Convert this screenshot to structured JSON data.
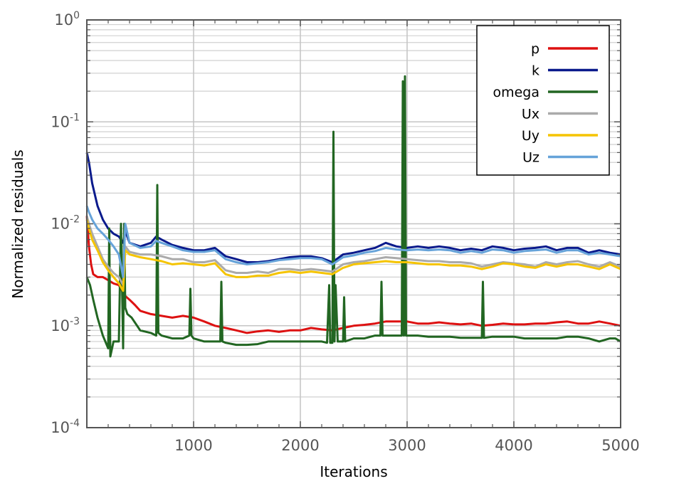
{
  "chart_data": {
    "type": "line",
    "title": "",
    "xlabel": "Iterations",
    "ylabel": "Normalized residuals",
    "xscale": "linear",
    "yscale": "log",
    "xlim": [
      0,
      5000
    ],
    "ylim": [
      0.0001,
      1
    ],
    "x_ticks": [
      1000,
      2000,
      3000,
      4000,
      5000
    ],
    "x_tick_labels": [
      "1000",
      "2000",
      "3000",
      "4000",
      "5000"
    ],
    "y_ticks": [
      {
        "base": "10",
        "exp": "0",
        "value": 1
      },
      {
        "base": "10",
        "exp": "-1",
        "value": 0.1
      },
      {
        "base": "10",
        "exp": "-2",
        "value": 0.01
      },
      {
        "base": "10",
        "exp": "-3",
        "value": 0.001
      },
      {
        "base": "10",
        "exp": "-4",
        "value": 0.0001
      }
    ],
    "grid": true,
    "minor_grid": true,
    "legend_position": "top-right",
    "series": [
      {
        "name": "p",
        "color": "#dd1111",
        "x": [
          0,
          20,
          40,
          60,
          100,
          150,
          200,
          250,
          300,
          350,
          400,
          450,
          500,
          600,
          700,
          800,
          900,
          1000,
          1100,
          1200,
          1300,
          1400,
          1500,
          1600,
          1700,
          1800,
          1900,
          2000,
          2100,
          2200,
          2300,
          2400,
          2500,
          2600,
          2700,
          2800,
          2900,
          3000,
          3100,
          3200,
          3300,
          3400,
          3500,
          3600,
          3700,
          3800,
          3900,
          4000,
          4100,
          4200,
          4300,
          4400,
          4500,
          4600,
          4700,
          4800,
          4900,
          5000
        ],
        "y": [
          0.012,
          0.006,
          0.004,
          0.0032,
          0.003,
          0.003,
          0.0028,
          0.0026,
          0.0025,
          0.002,
          0.0018,
          0.0016,
          0.0014,
          0.0013,
          0.00125,
          0.0012,
          0.00125,
          0.0012,
          0.0011,
          0.001,
          0.00095,
          0.0009,
          0.00085,
          0.00088,
          0.0009,
          0.00087,
          0.0009,
          0.0009,
          0.00095,
          0.00092,
          0.0009,
          0.00095,
          0.001,
          0.00102,
          0.00105,
          0.0011,
          0.0011,
          0.0011,
          0.00105,
          0.00105,
          0.00108,
          0.00105,
          0.00103,
          0.00105,
          0.001,
          0.00102,
          0.00105,
          0.00103,
          0.00103,
          0.00105,
          0.00105,
          0.00108,
          0.0011,
          0.00105,
          0.00105,
          0.0011,
          0.00105,
          0.001
        ]
      },
      {
        "name": "k",
        "color": "#0a1a8c",
        "x": [
          0,
          20,
          50,
          100,
          150,
          200,
          250,
          300,
          340,
          360,
          400,
          500,
          600,
          650,
          700,
          800,
          900,
          1000,
          1100,
          1200,
          1300,
          1400,
          1500,
          1600,
          1700,
          1800,
          1900,
          2000,
          2100,
          2200,
          2300,
          2400,
          2500,
          2600,
          2700,
          2800,
          2900,
          3000,
          3100,
          3200,
          3300,
          3400,
          3500,
          3600,
          3700,
          3800,
          3900,
          4000,
          4100,
          4200,
          4300,
          4400,
          4500,
          4600,
          4700,
          4800,
          4900,
          5000
        ],
        "y": [
          0.05,
          0.04,
          0.025,
          0.015,
          0.011,
          0.009,
          0.008,
          0.0075,
          0.0065,
          0.0085,
          0.0065,
          0.006,
          0.0065,
          0.0075,
          0.007,
          0.0062,
          0.0058,
          0.0055,
          0.0055,
          0.0058,
          0.0048,
          0.0045,
          0.0042,
          0.0042,
          0.0043,
          0.0045,
          0.0047,
          0.0048,
          0.0048,
          0.0046,
          0.0042,
          0.005,
          0.0052,
          0.0055,
          0.0058,
          0.0065,
          0.006,
          0.0058,
          0.006,
          0.0058,
          0.006,
          0.0058,
          0.0055,
          0.0057,
          0.0055,
          0.006,
          0.0058,
          0.0055,
          0.0057,
          0.0058,
          0.006,
          0.0055,
          0.0058,
          0.0058,
          0.0052,
          0.0055,
          0.0052,
          0.005
        ]
      },
      {
        "name": "omega",
        "color": "#226622",
        "x": [
          0,
          30,
          60,
          100,
          150,
          200,
          210,
          220,
          250,
          300,
          320,
          340,
          350,
          360,
          380,
          420,
          500,
          600,
          650,
          660,
          670,
          700,
          800,
          900,
          960,
          970,
          980,
          1000,
          1100,
          1200,
          1250,
          1260,
          1270,
          1300,
          1400,
          1500,
          1600,
          1700,
          1800,
          1900,
          2000,
          2100,
          2200,
          2250,
          2270,
          2280,
          2300,
          2310,
          2320,
          2330,
          2350,
          2400,
          2410,
          2420,
          2500,
          2600,
          2700,
          2750,
          2760,
          2770,
          2800,
          2900,
          2950,
          2960,
          2970,
          2980,
          2990,
          3000,
          3010,
          3100,
          3200,
          3300,
          3400,
          3500,
          3600,
          3700,
          3710,
          3720,
          3800,
          3900,
          4000,
          4100,
          4200,
          4300,
          4400,
          4500,
          4600,
          4700,
          4800,
          4900,
          4950,
          5000
        ],
        "y": [
          0.003,
          0.0025,
          0.0018,
          0.0012,
          0.0008,
          0.0006,
          0.009,
          0.0005,
          0.0007,
          0.0007,
          0.01,
          0.0006,
          0.01,
          0.0015,
          0.0013,
          0.0012,
          0.0009,
          0.00085,
          0.0008,
          0.024,
          0.00085,
          0.0008,
          0.00075,
          0.00075,
          0.0008,
          0.0023,
          0.0008,
          0.00075,
          0.0007,
          0.0007,
          0.0007,
          0.0027,
          0.0007,
          0.00068,
          0.00065,
          0.00065,
          0.00066,
          0.0007,
          0.0007,
          0.0007,
          0.0007,
          0.0007,
          0.0007,
          0.00068,
          0.0025,
          0.00068,
          0.00068,
          0.08,
          0.0007,
          0.0025,
          0.0007,
          0.0007,
          0.0019,
          0.0007,
          0.00075,
          0.00075,
          0.0008,
          0.0008,
          0.0027,
          0.0008,
          0.0008,
          0.0008,
          0.0008,
          0.25,
          0.0008,
          0.28,
          0.0008,
          0.0008,
          0.0008,
          0.0008,
          0.00078,
          0.00078,
          0.00078,
          0.00076,
          0.00076,
          0.00076,
          0.0027,
          0.00076,
          0.00078,
          0.00078,
          0.00078,
          0.00075,
          0.00075,
          0.00075,
          0.00075,
          0.00078,
          0.00078,
          0.00075,
          0.0007,
          0.00075,
          0.00075,
          0.0007
        ]
      },
      {
        "name": "Ux",
        "color": "#aaaaaa",
        "x": [
          0,
          20,
          50,
          100,
          150,
          200,
          250,
          300,
          340,
          360,
          400,
          500,
          600,
          700,
          800,
          900,
          1000,
          1100,
          1200,
          1300,
          1400,
          1500,
          1600,
          1700,
          1800,
          1900,
          2000,
          2100,
          2200,
          2300,
          2400,
          2500,
          2600,
          2700,
          2800,
          2900,
          3000,
          3100,
          3200,
          3300,
          3400,
          3500,
          3600,
          3700,
          3800,
          3900,
          4000,
          4100,
          4200,
          4300,
          4400,
          4500,
          4600,
          4700,
          4800,
          4900,
          5000
        ],
        "y": [
          0.012,
          0.01,
          0.008,
          0.006,
          0.0045,
          0.0038,
          0.0033,
          0.003,
          0.0025,
          0.006,
          0.0053,
          0.005,
          0.005,
          0.0048,
          0.0045,
          0.0045,
          0.0042,
          0.0042,
          0.0044,
          0.0035,
          0.0033,
          0.0033,
          0.0034,
          0.0033,
          0.0036,
          0.0036,
          0.0035,
          0.0036,
          0.0035,
          0.0034,
          0.004,
          0.0042,
          0.0043,
          0.0045,
          0.0047,
          0.0046,
          0.0045,
          0.0044,
          0.0043,
          0.0043,
          0.0042,
          0.0042,
          0.0041,
          0.0038,
          0.004,
          0.0042,
          0.0041,
          0.004,
          0.0038,
          0.0042,
          0.004,
          0.0042,
          0.0043,
          0.004,
          0.0038,
          0.0042,
          0.0038
        ]
      },
      {
        "name": "Uy",
        "color": "#f5c400",
        "x": [
          0,
          20,
          50,
          100,
          150,
          200,
          250,
          300,
          340,
          360,
          400,
          500,
          600,
          700,
          800,
          900,
          1000,
          1100,
          1200,
          1300,
          1400,
          1500,
          1600,
          1700,
          1800,
          1900,
          2000,
          2100,
          2200,
          2300,
          2400,
          2500,
          2600,
          2700,
          2800,
          2900,
          3000,
          3100,
          3200,
          3300,
          3400,
          3500,
          3600,
          3700,
          3800,
          3900,
          4000,
          4100,
          4200,
          4300,
          4400,
          4500,
          4600,
          4700,
          4800,
          4900,
          5000
        ],
        "y": [
          0.011,
          0.009,
          0.007,
          0.0055,
          0.0042,
          0.0035,
          0.003,
          0.0026,
          0.0022,
          0.0055,
          0.005,
          0.0047,
          0.0045,
          0.0043,
          0.004,
          0.0041,
          0.004,
          0.0039,
          0.0041,
          0.0032,
          0.003,
          0.003,
          0.0031,
          0.0031,
          0.0033,
          0.0034,
          0.0033,
          0.0034,
          0.0033,
          0.0032,
          0.0037,
          0.004,
          0.0041,
          0.0042,
          0.0043,
          0.0042,
          0.0042,
          0.0041,
          0.004,
          0.004,
          0.0039,
          0.0039,
          0.0038,
          0.0036,
          0.0038,
          0.0041,
          0.004,
          0.0038,
          0.0037,
          0.004,
          0.0038,
          0.004,
          0.004,
          0.0038,
          0.0036,
          0.004,
          0.0036
        ]
      },
      {
        "name": "Uz",
        "color": "#66a3d9",
        "x": [
          0,
          20,
          50,
          100,
          150,
          200,
          250,
          300,
          340,
          360,
          400,
          500,
          600,
          650,
          700,
          800,
          900,
          1000,
          1100,
          1200,
          1300,
          1400,
          1500,
          1600,
          1700,
          1800,
          1900,
          2000,
          2100,
          2200,
          2300,
          2400,
          2500,
          2600,
          2700,
          2800,
          2900,
          3000,
          3100,
          3200,
          3300,
          3400,
          3500,
          3600,
          3700,
          3800,
          3900,
          4000,
          4100,
          4200,
          4300,
          4400,
          4500,
          4600,
          4700,
          4800,
          4900,
          5000
        ],
        "y": [
          0.015,
          0.013,
          0.011,
          0.009,
          0.008,
          0.007,
          0.006,
          0.005,
          0.003,
          0.01,
          0.0065,
          0.0058,
          0.006,
          0.0068,
          0.0065,
          0.006,
          0.0055,
          0.0053,
          0.0053,
          0.0055,
          0.0045,
          0.0042,
          0.004,
          0.0041,
          0.0042,
          0.0044,
          0.0045,
          0.0046,
          0.0046,
          0.0045,
          0.004,
          0.0047,
          0.0049,
          0.0052,
          0.0054,
          0.0058,
          0.0056,
          0.0055,
          0.0056,
          0.0055,
          0.0056,
          0.0055,
          0.0052,
          0.0054,
          0.0052,
          0.0056,
          0.0055,
          0.0052,
          0.0054,
          0.0055,
          0.0056,
          0.0052,
          0.0055,
          0.0055,
          0.005,
          0.0052,
          0.005,
          0.0048
        ]
      }
    ]
  }
}
